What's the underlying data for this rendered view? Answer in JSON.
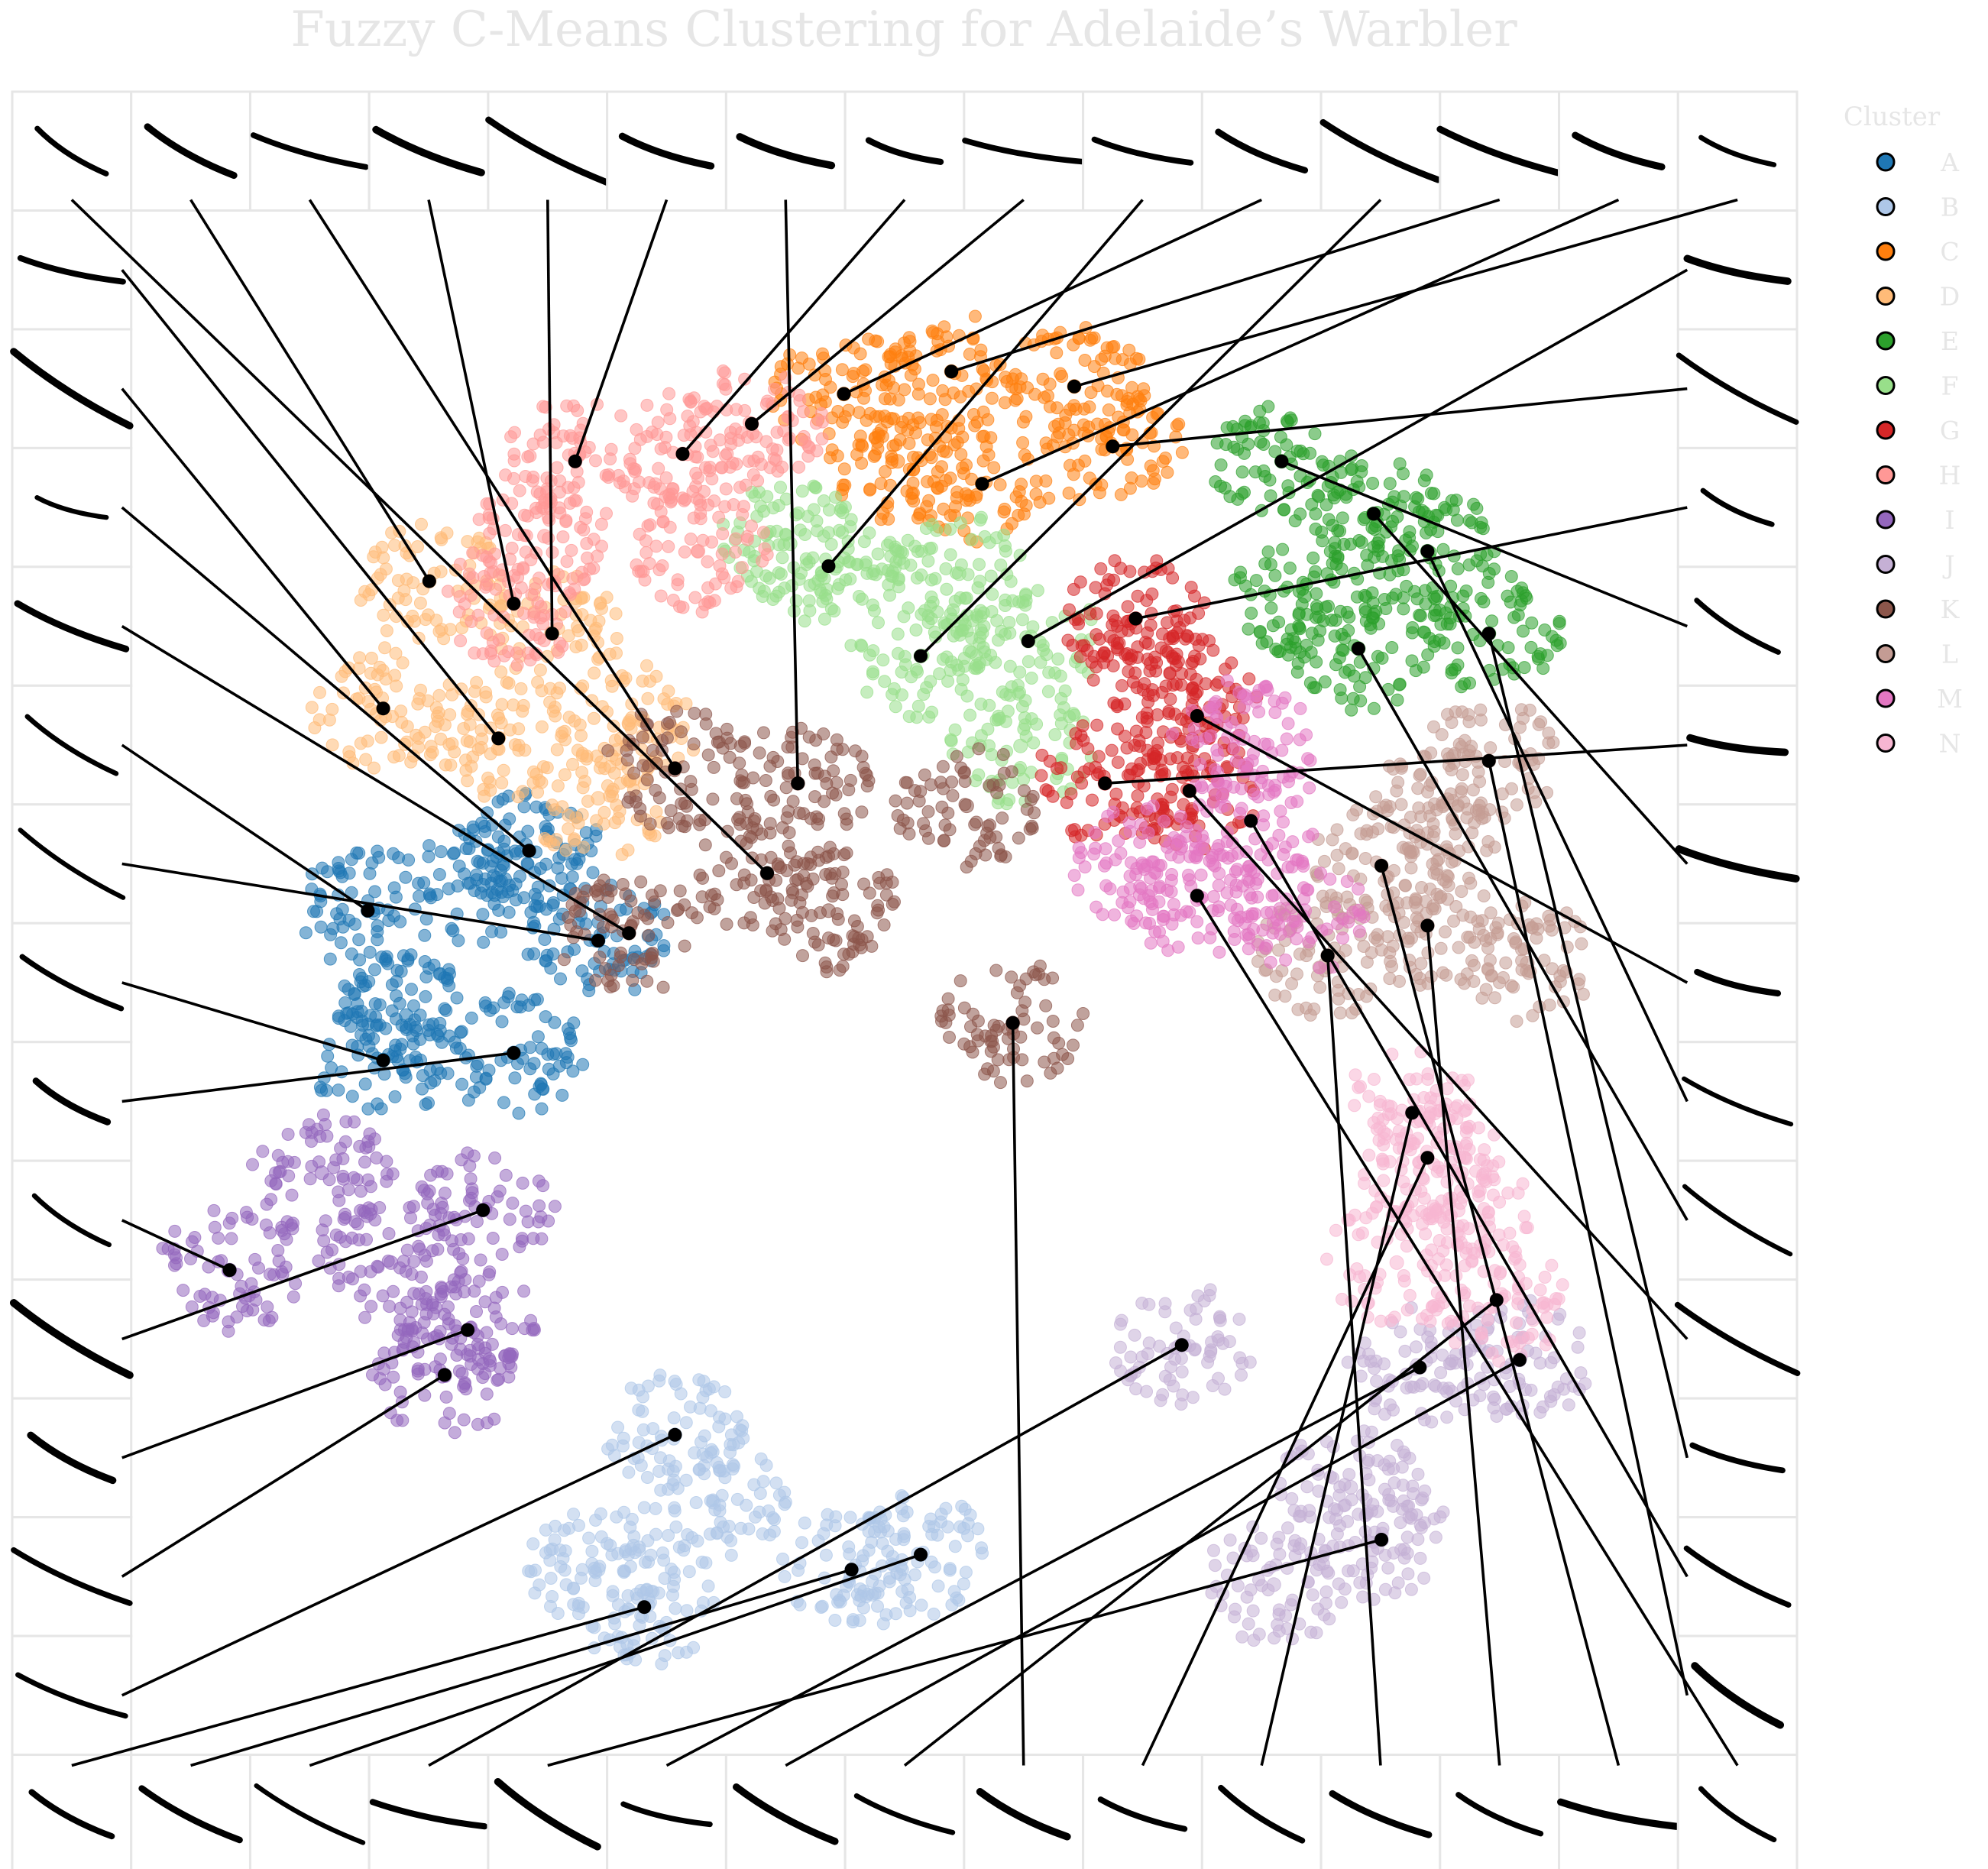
{
  "chart_data": {
    "type": "scatter",
    "title": "Fuzzy C-Means Clustering for Adelaide’s Warbler",
    "xlabel": "",
    "ylabel": "",
    "grid": false,
    "legend": {
      "title": "Cluster",
      "placement": "right",
      "entries": [
        "A",
        "B",
        "C",
        "D",
        "E",
        "F",
        "G",
        "H",
        "I",
        "J",
        "K",
        "L",
        "M",
        "N"
      ]
    },
    "colors": {
      "A": "#1f77b4",
      "B": "#aec7e8",
      "C": "#ff7f0e",
      "D": "#ffbb78",
      "E": "#2ca02c",
      "F": "#98df8a",
      "G": "#d62728",
      "H": "#ff9896",
      "I": "#9467bd",
      "J": "#c5b0d5",
      "K": "#8c564b",
      "L": "#c49c94",
      "M": "#e377c2",
      "N": "#f7b6d2"
    },
    "series": [
      {
        "name": "A",
        "values": [
          [
            -3.55,
            0.45
          ],
          [
            -2.8,
            0.62
          ],
          [
            -3.3,
            -0.25
          ],
          [
            -2.05,
            0.25
          ],
          [
            -2.6,
            -0.5
          ],
          [
            -3.45,
            -0.55
          ],
          [
            -2.5,
            0.85
          ]
        ]
      },
      {
        "name": "B",
        "values": [
          [
            -2.05,
            -3.95
          ],
          [
            -1.3,
            -3.5
          ],
          [
            -0.4,
            -3.95
          ],
          [
            0.05,
            -3.85
          ],
          [
            -1.55,
            -3.05
          ],
          [
            -1.75,
            -4.2
          ]
        ]
      },
      {
        "name": "C",
        "values": [
          [
            -0.45,
            3.9
          ],
          [
            0.25,
            4.05
          ],
          [
            1.05,
            3.95
          ],
          [
            0.45,
            3.3
          ],
          [
            1.3,
            3.55
          ],
          [
            -0.1,
            3.45
          ]
        ]
      },
      {
        "name": "D",
        "values": [
          [
            -3.45,
            1.8
          ],
          [
            -2.7,
            1.6
          ],
          [
            -1.85,
            1.7
          ],
          [
            -2.35,
            2.3
          ],
          [
            -3.15,
            2.65
          ],
          [
            -2.05,
            1.2
          ]
        ]
      },
      {
        "name": "E",
        "values": [
          [
            2.4,
            3.45
          ],
          [
            3.0,
            3.1
          ],
          [
            2.55,
            2.55
          ],
          [
            3.35,
            2.85
          ],
          [
            3.75,
            2.3
          ],
          [
            2.9,
            2.2
          ]
        ]
      },
      {
        "name": "F",
        "values": [
          [
            -0.55,
            2.75
          ],
          [
            0.3,
            2.7
          ],
          [
            0.75,
            2.25
          ],
          [
            0.05,
            2.15
          ],
          [
            0.7,
            1.55
          ],
          [
            -0.8,
            2.9
          ]
        ]
      },
      {
        "name": "G",
        "values": [
          [
            1.55,
            2.1
          ],
          [
            1.85,
            1.75
          ],
          [
            1.25,
            1.3
          ],
          [
            1.8,
            1.25
          ],
          [
            1.45,
            2.4
          ]
        ]
      },
      {
        "name": "H",
        "values": [
          [
            -2.2,
            3.45
          ],
          [
            -1.5,
            3.5
          ],
          [
            -2.4,
            2.95
          ],
          [
            -1.4,
            2.85
          ],
          [
            -2.6,
            2.5
          ],
          [
            -1.05,
            3.7
          ]
        ]
      },
      {
        "name": "I",
        "values": [
          [
            -3.85,
            -1.3
          ],
          [
            -2.8,
            -1.55
          ],
          [
            -3.4,
            -1.9
          ],
          [
            -2.9,
            -2.35
          ],
          [
            -3.05,
            -2.65
          ],
          [
            -4.45,
            -1.95
          ]
        ]
      },
      {
        "name": "J",
        "values": [
          [
            2.85,
            -3.4
          ],
          [
            3.3,
            -2.6
          ],
          [
            3.95,
            -2.55
          ],
          [
            1.75,
            -2.45
          ],
          [
            2.35,
            -4.05
          ],
          [
            3.05,
            -3.75
          ]
        ]
      },
      {
        "name": "K",
        "values": [
          [
            -1.55,
            1.4
          ],
          [
            -0.75,
            1.3
          ],
          [
            0.35,
            1.15
          ],
          [
            -0.95,
            0.7
          ],
          [
            -0.55,
            0.45
          ],
          [
            0.65,
            -0.3
          ],
          [
            -1.85,
            0.3
          ]
        ]
      },
      {
        "name": "L",
        "values": [
          [
            3.75,
            1.45
          ],
          [
            3.05,
            0.75
          ],
          [
            3.35,
            0.35
          ],
          [
            4.0,
            0.1
          ],
          [
            2.7,
            0.15
          ],
          [
            3.45,
            1.15
          ]
        ]
      },
      {
        "name": "M",
        "values": [
          [
            2.2,
            1.05
          ],
          [
            1.5,
            0.75
          ],
          [
            1.85,
            0.55
          ],
          [
            2.55,
            0.45
          ],
          [
            2.15,
            1.6
          ]
        ]
      },
      {
        "name": "N",
        "values": [
          [
            3.25,
            -0.9
          ],
          [
            3.55,
            -1.55
          ],
          [
            3.8,
            -2.15
          ],
          [
            3.15,
            -1.9
          ],
          [
            3.35,
            -1.2
          ]
        ]
      }
    ]
  }
}
